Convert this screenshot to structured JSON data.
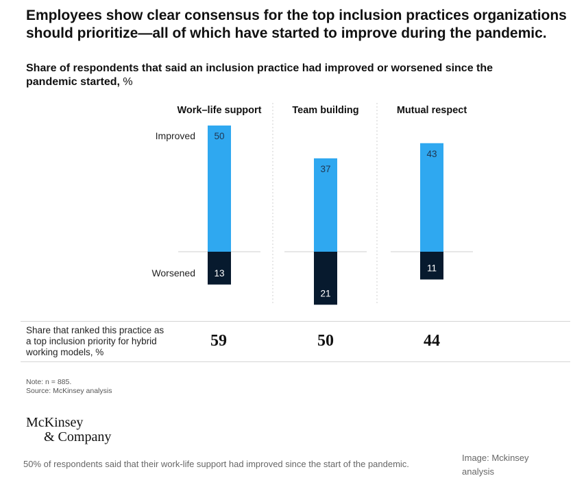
{
  "headline": "Employees show clear consensus for the top inclusion practices organizations should prioritize—all of which have started to improve during the pandemic.",
  "chart_data": {
    "type": "bar",
    "title": "Share of respondents that said an inclusion practice had improved or worsened since the pandemic started,",
    "unit": "%",
    "categories": [
      "Work–life support",
      "Team building",
      "Mutual respect"
    ],
    "series": [
      {
        "name": "Improved",
        "values": [
          50,
          37,
          43
        ]
      },
      {
        "name": "Worsened",
        "values": [
          13,
          21,
          11
        ]
      }
    ],
    "colors": {
      "improved": "#2fa8f0",
      "worsened": "#071a2e"
    },
    "direction": "diverging"
  },
  "priority": {
    "label": "Share that ranked this practice as a top inclusion priority for hybrid working models, %",
    "values": [
      "59",
      "50",
      "44"
    ]
  },
  "note": "Note: n = 885.",
  "source": "Source: McKinsey analysis",
  "logo": {
    "line1": "McKinsey",
    "line2": "& Company"
  },
  "caption": "50% of respondents said that their work-life support had improved since the start of the pandemic.",
  "credit": "Image: Mckinsey analysis"
}
